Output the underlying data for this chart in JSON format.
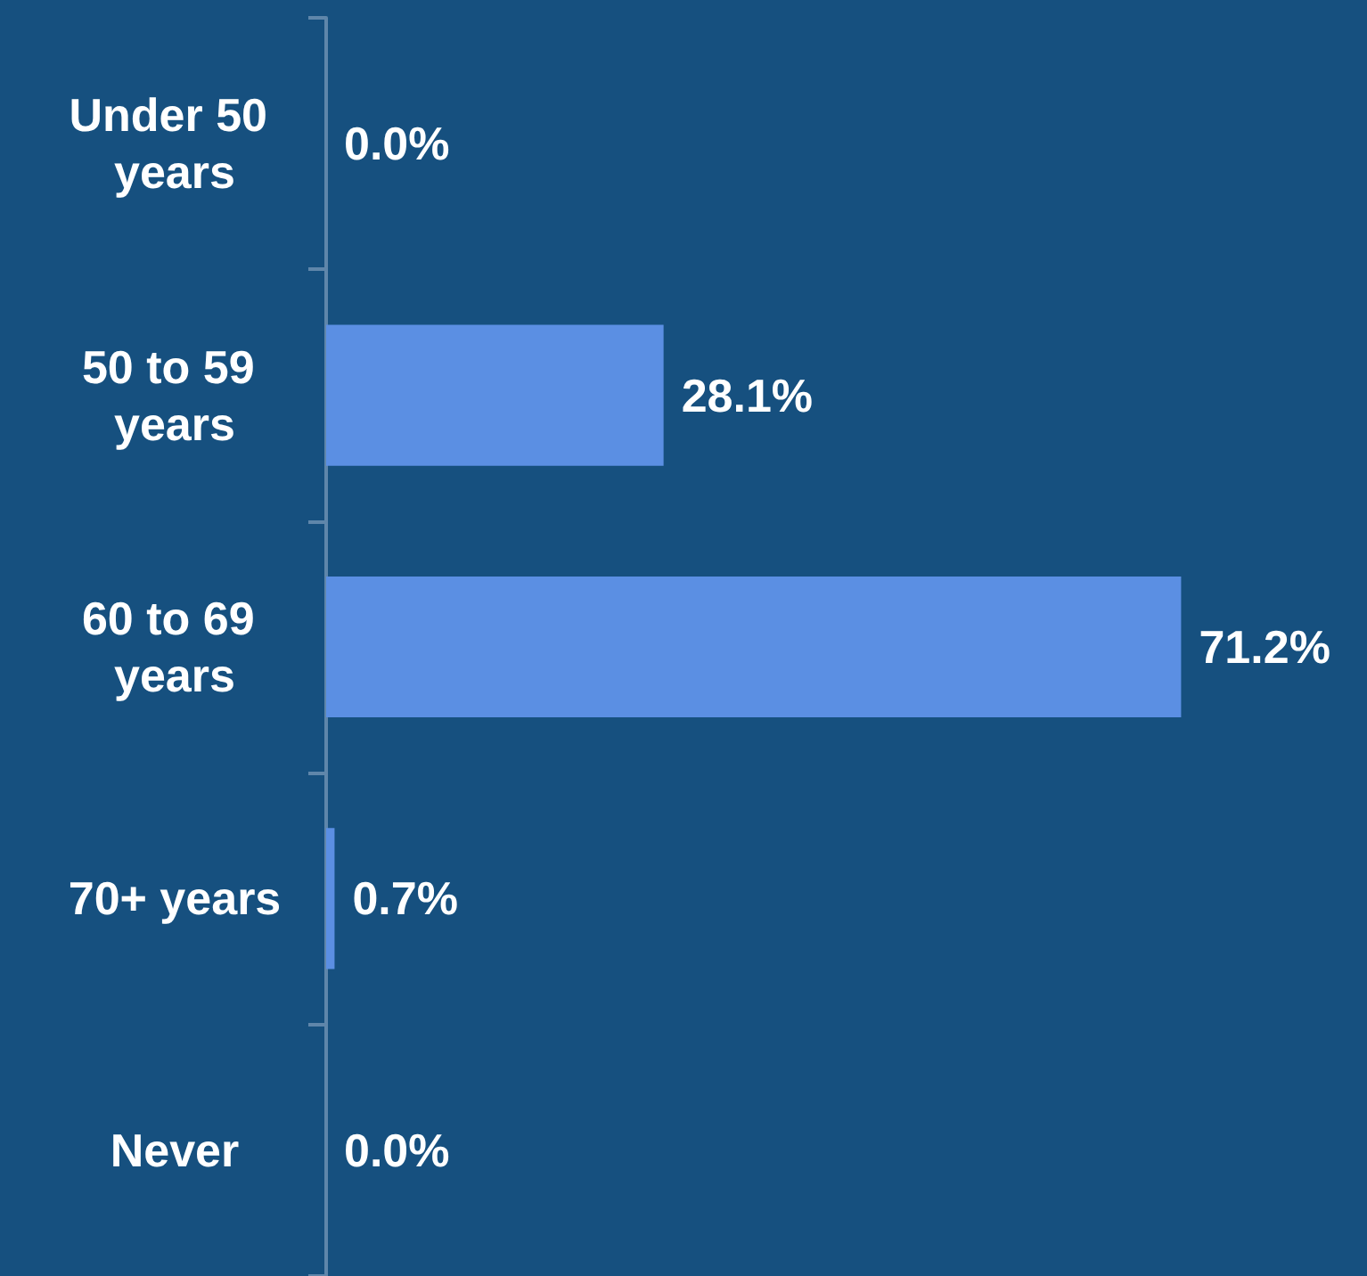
{
  "chart_data": {
    "type": "bar",
    "orientation": "horizontal",
    "categories": [
      "Under 50 years",
      "50 to 59 years",
      "60 to 69 years",
      "70+ years",
      "Never"
    ],
    "values": [
      0,
      28.1,
      71.2,
      0.7,
      0
    ],
    "value_labels": [
      "0.0%",
      "28.1%",
      "71.2%",
      "0.7%",
      "0.0%"
    ],
    "color": "#5b8fe3"
  }
}
